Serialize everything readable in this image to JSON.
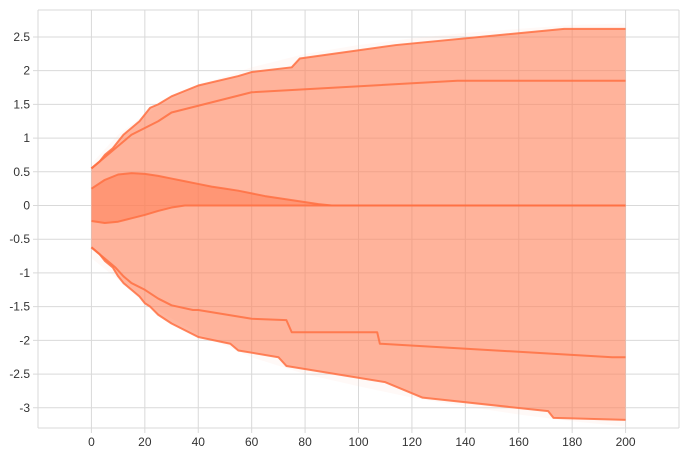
{
  "chart_data": {
    "type": "area",
    "title": "",
    "xlabel": "",
    "ylabel": "",
    "xlim": [
      -20,
      220
    ],
    "ylim": [
      -3.3,
      2.9
    ],
    "grid": true,
    "x_ticks": [
      0,
      20,
      40,
      60,
      80,
      100,
      120,
      140,
      160,
      180,
      200
    ],
    "x_tick_labels": [
      "0",
      "20",
      "40",
      "60",
      "80",
      "100",
      "120",
      "140",
      "160",
      "180",
      "200"
    ],
    "y_ticks": [
      2.5,
      2,
      1.5,
      1,
      0.5,
      0,
      -0.5,
      -1,
      -1.5,
      -2,
      -2.5,
      -3
    ],
    "y_tick_labels": [
      "2.5",
      "2",
      "1.5",
      "1",
      "0.5",
      "0",
      "-0.5",
      "-1",
      "-1.5",
      "-2",
      "-2.5",
      "-3"
    ],
    "colors": {
      "band": "#ff7a50",
      "line": "#ff7042",
      "light": "#ffd8cc"
    },
    "bands": [
      {
        "opacity": 0.15,
        "upper": {
          "x": [
            0,
            10,
            20,
            40,
            60,
            80,
            100,
            120,
            140,
            160,
            180,
            200
          ],
          "y": [
            0.62,
            1.05,
            1.35,
            1.78,
            2.05,
            2.25,
            2.38,
            2.48,
            2.56,
            2.62,
            2.68,
            2.7
          ]
        },
        "lower": {
          "x": [
            0,
            10,
            20,
            40,
            60,
            80,
            100,
            120,
            140,
            160,
            180,
            200
          ],
          "y": [
            -0.78,
            -1.1,
            -1.45,
            -1.9,
            -2.25,
            -2.5,
            -2.68,
            -2.85,
            -2.98,
            -3.1,
            -3.2,
            -3.28
          ]
        }
      },
      {
        "opacity": 0.55,
        "upper": {
          "x": [
            0,
            3,
            5,
            8,
            10,
            12,
            15,
            18,
            20,
            22,
            25,
            30,
            40,
            55,
            60,
            75,
            78,
            114,
            177,
            200
          ],
          "y": [
            0.55,
            0.65,
            0.75,
            0.85,
            0.95,
            1.05,
            1.15,
            1.25,
            1.35,
            1.45,
            1.5,
            1.62,
            1.78,
            1.92,
            1.98,
            2.05,
            2.18,
            2.38,
            2.62,
            2.62
          ]
        },
        "lower": {
          "x": [
            0,
            3,
            5,
            8,
            10,
            12,
            15,
            18,
            20,
            22,
            25,
            30,
            40,
            52,
            55,
            70,
            73,
            110,
            124,
            171,
            173,
            200
          ],
          "y": [
            -0.62,
            -0.72,
            -0.82,
            -0.92,
            -1.05,
            -1.15,
            -1.25,
            -1.35,
            -1.45,
            -1.5,
            -1.62,
            -1.75,
            -1.95,
            -2.05,
            -2.15,
            -2.25,
            -2.38,
            -2.62,
            -2.85,
            -3.05,
            -3.15,
            -3.18
          ]
        }
      },
      {
        "opacity": 0.5,
        "upper": {
          "x": [
            0,
            5,
            10,
            15,
            20,
            25,
            30,
            35,
            40,
            45,
            50,
            55,
            60,
            65,
            70,
            75,
            80,
            85,
            90,
            200
          ],
          "y": [
            0.25,
            0.38,
            0.46,
            0.48,
            0.47,
            0.44,
            0.4,
            0.36,
            0.32,
            0.28,
            0.25,
            0.22,
            0.18,
            0.14,
            0.11,
            0.08,
            0.05,
            0.02,
            0,
            0
          ]
        },
        "lower": {
          "x": [
            0,
            5,
            10,
            15,
            20,
            25,
            30,
            35,
            40,
            45,
            50,
            55,
            60,
            65,
            70,
            75,
            80,
            85,
            90,
            200
          ],
          "y": [
            -0.23,
            -0.26,
            -0.24,
            -0.19,
            -0.14,
            -0.08,
            -0.03,
            0,
            0,
            0,
            0,
            0,
            0,
            0,
            0,
            0,
            0,
            0,
            0,
            0
          ]
        }
      }
    ],
    "lines": [
      {
        "x": [
          0,
          3,
          5,
          8,
          10,
          12,
          15,
          18,
          20,
          22,
          25,
          30,
          40,
          55,
          60,
          75,
          78,
          114,
          177,
          200
        ],
        "y": [
          0.55,
          0.65,
          0.75,
          0.85,
          0.95,
          1.05,
          1.15,
          1.25,
          1.35,
          1.45,
          1.5,
          1.62,
          1.78,
          1.92,
          1.98,
          2.05,
          2.18,
          2.38,
          2.62,
          2.62
        ]
      },
      {
        "x": [
          0,
          3,
          6,
          9,
          12,
          15,
          20,
          25,
          30,
          40,
          60,
          137,
          200
        ],
        "y": [
          0.55,
          0.65,
          0.75,
          0.85,
          0.95,
          1.05,
          1.15,
          1.25,
          1.38,
          1.48,
          1.68,
          1.85,
          1.85
        ]
      },
      {
        "x": [
          0,
          5,
          10,
          15,
          20,
          25,
          30,
          35,
          40,
          45,
          50,
          55,
          60,
          65,
          70,
          75,
          80,
          85,
          90,
          200
        ],
        "y": [
          0.25,
          0.38,
          0.46,
          0.48,
          0.47,
          0.44,
          0.4,
          0.36,
          0.32,
          0.28,
          0.25,
          0.22,
          0.18,
          0.14,
          0.11,
          0.08,
          0.05,
          0.02,
          0,
          0
        ]
      },
      {
        "x": [
          0,
          5,
          10,
          15,
          20,
          25,
          30,
          35,
          40,
          200
        ],
        "y": [
          -0.23,
          -0.26,
          -0.24,
          -0.19,
          -0.14,
          -0.08,
          -0.03,
          0,
          0,
          0
        ]
      },
      {
        "x": [
          0,
          3,
          6,
          9,
          12,
          15,
          20,
          25,
          30,
          38,
          40,
          60,
          73,
          75,
          107,
          108,
          195,
          200
        ],
        "y": [
          -0.62,
          -0.72,
          -0.82,
          -0.92,
          -1.05,
          -1.15,
          -1.25,
          -1.38,
          -1.48,
          -1.55,
          -1.55,
          -1.68,
          -1.7,
          -1.88,
          -1.88,
          -2.05,
          -2.25,
          -2.25
        ]
      },
      {
        "x": [
          0,
          3,
          5,
          8,
          10,
          12,
          15,
          18,
          20,
          22,
          25,
          30,
          40,
          52,
          55,
          70,
          73,
          110,
          124,
          171,
          173,
          200
        ],
        "y": [
          -0.62,
          -0.72,
          -0.82,
          -0.92,
          -1.05,
          -1.15,
          -1.25,
          -1.35,
          -1.45,
          -1.5,
          -1.62,
          -1.75,
          -1.95,
          -2.05,
          -2.15,
          -2.25,
          -2.38,
          -2.62,
          -2.85,
          -3.05,
          -3.15,
          -3.18
        ]
      }
    ]
  }
}
